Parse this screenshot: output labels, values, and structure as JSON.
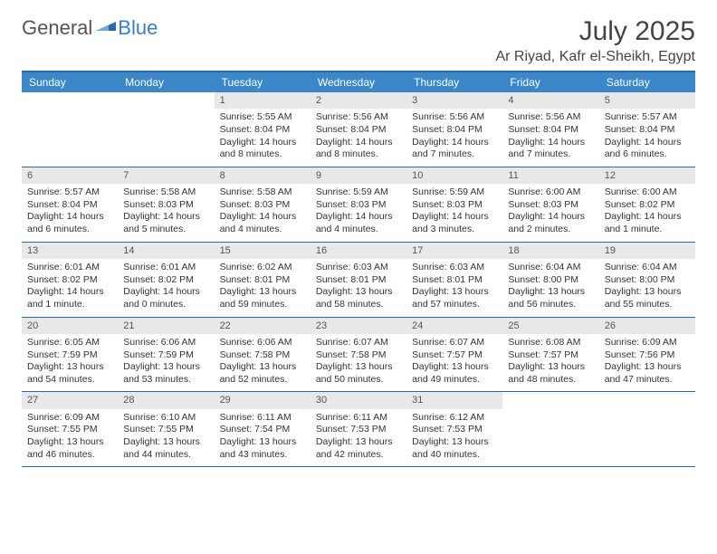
{
  "logo": {
    "part1": "General",
    "part2": "Blue"
  },
  "title": "July 2025",
  "location": "Ar Riyad, Kafr el-Sheikh, Egypt",
  "colors": {
    "header_bg": "#3b87c8",
    "header_border": "#2d6aa3",
    "daynum_bg": "#e8e8e8",
    "logo_blue": "#3b7fc4",
    "text": "#333333"
  },
  "daysOfWeek": [
    "Sunday",
    "Monday",
    "Tuesday",
    "Wednesday",
    "Thursday",
    "Friday",
    "Saturday"
  ],
  "weeks": [
    [
      {
        "n": "",
        "sr": "",
        "ss": "",
        "dl": ""
      },
      {
        "n": "",
        "sr": "",
        "ss": "",
        "dl": ""
      },
      {
        "n": "1",
        "sr": "Sunrise: 5:55 AM",
        "ss": "Sunset: 8:04 PM",
        "dl": "Daylight: 14 hours and 8 minutes."
      },
      {
        "n": "2",
        "sr": "Sunrise: 5:56 AM",
        "ss": "Sunset: 8:04 PM",
        "dl": "Daylight: 14 hours and 8 minutes."
      },
      {
        "n": "3",
        "sr": "Sunrise: 5:56 AM",
        "ss": "Sunset: 8:04 PM",
        "dl": "Daylight: 14 hours and 7 minutes."
      },
      {
        "n": "4",
        "sr": "Sunrise: 5:56 AM",
        "ss": "Sunset: 8:04 PM",
        "dl": "Daylight: 14 hours and 7 minutes."
      },
      {
        "n": "5",
        "sr": "Sunrise: 5:57 AM",
        "ss": "Sunset: 8:04 PM",
        "dl": "Daylight: 14 hours and 6 minutes."
      }
    ],
    [
      {
        "n": "6",
        "sr": "Sunrise: 5:57 AM",
        "ss": "Sunset: 8:04 PM",
        "dl": "Daylight: 14 hours and 6 minutes."
      },
      {
        "n": "7",
        "sr": "Sunrise: 5:58 AM",
        "ss": "Sunset: 8:03 PM",
        "dl": "Daylight: 14 hours and 5 minutes."
      },
      {
        "n": "8",
        "sr": "Sunrise: 5:58 AM",
        "ss": "Sunset: 8:03 PM",
        "dl": "Daylight: 14 hours and 4 minutes."
      },
      {
        "n": "9",
        "sr": "Sunrise: 5:59 AM",
        "ss": "Sunset: 8:03 PM",
        "dl": "Daylight: 14 hours and 4 minutes."
      },
      {
        "n": "10",
        "sr": "Sunrise: 5:59 AM",
        "ss": "Sunset: 8:03 PM",
        "dl": "Daylight: 14 hours and 3 minutes."
      },
      {
        "n": "11",
        "sr": "Sunrise: 6:00 AM",
        "ss": "Sunset: 8:03 PM",
        "dl": "Daylight: 14 hours and 2 minutes."
      },
      {
        "n": "12",
        "sr": "Sunrise: 6:00 AM",
        "ss": "Sunset: 8:02 PM",
        "dl": "Daylight: 14 hours and 1 minute."
      }
    ],
    [
      {
        "n": "13",
        "sr": "Sunrise: 6:01 AM",
        "ss": "Sunset: 8:02 PM",
        "dl": "Daylight: 14 hours and 1 minute."
      },
      {
        "n": "14",
        "sr": "Sunrise: 6:01 AM",
        "ss": "Sunset: 8:02 PM",
        "dl": "Daylight: 14 hours and 0 minutes."
      },
      {
        "n": "15",
        "sr": "Sunrise: 6:02 AM",
        "ss": "Sunset: 8:01 PM",
        "dl": "Daylight: 13 hours and 59 minutes."
      },
      {
        "n": "16",
        "sr": "Sunrise: 6:03 AM",
        "ss": "Sunset: 8:01 PM",
        "dl": "Daylight: 13 hours and 58 minutes."
      },
      {
        "n": "17",
        "sr": "Sunrise: 6:03 AM",
        "ss": "Sunset: 8:01 PM",
        "dl": "Daylight: 13 hours and 57 minutes."
      },
      {
        "n": "18",
        "sr": "Sunrise: 6:04 AM",
        "ss": "Sunset: 8:00 PM",
        "dl": "Daylight: 13 hours and 56 minutes."
      },
      {
        "n": "19",
        "sr": "Sunrise: 6:04 AM",
        "ss": "Sunset: 8:00 PM",
        "dl": "Daylight: 13 hours and 55 minutes."
      }
    ],
    [
      {
        "n": "20",
        "sr": "Sunrise: 6:05 AM",
        "ss": "Sunset: 7:59 PM",
        "dl": "Daylight: 13 hours and 54 minutes."
      },
      {
        "n": "21",
        "sr": "Sunrise: 6:06 AM",
        "ss": "Sunset: 7:59 PM",
        "dl": "Daylight: 13 hours and 53 minutes."
      },
      {
        "n": "22",
        "sr": "Sunrise: 6:06 AM",
        "ss": "Sunset: 7:58 PM",
        "dl": "Daylight: 13 hours and 52 minutes."
      },
      {
        "n": "23",
        "sr": "Sunrise: 6:07 AM",
        "ss": "Sunset: 7:58 PM",
        "dl": "Daylight: 13 hours and 50 minutes."
      },
      {
        "n": "24",
        "sr": "Sunrise: 6:07 AM",
        "ss": "Sunset: 7:57 PM",
        "dl": "Daylight: 13 hours and 49 minutes."
      },
      {
        "n": "25",
        "sr": "Sunrise: 6:08 AM",
        "ss": "Sunset: 7:57 PM",
        "dl": "Daylight: 13 hours and 48 minutes."
      },
      {
        "n": "26",
        "sr": "Sunrise: 6:09 AM",
        "ss": "Sunset: 7:56 PM",
        "dl": "Daylight: 13 hours and 47 minutes."
      }
    ],
    [
      {
        "n": "27",
        "sr": "Sunrise: 6:09 AM",
        "ss": "Sunset: 7:55 PM",
        "dl": "Daylight: 13 hours and 46 minutes."
      },
      {
        "n": "28",
        "sr": "Sunrise: 6:10 AM",
        "ss": "Sunset: 7:55 PM",
        "dl": "Daylight: 13 hours and 44 minutes."
      },
      {
        "n": "29",
        "sr": "Sunrise: 6:11 AM",
        "ss": "Sunset: 7:54 PM",
        "dl": "Daylight: 13 hours and 43 minutes."
      },
      {
        "n": "30",
        "sr": "Sunrise: 6:11 AM",
        "ss": "Sunset: 7:53 PM",
        "dl": "Daylight: 13 hours and 42 minutes."
      },
      {
        "n": "31",
        "sr": "Sunrise: 6:12 AM",
        "ss": "Sunset: 7:53 PM",
        "dl": "Daylight: 13 hours and 40 minutes."
      },
      {
        "n": "",
        "sr": "",
        "ss": "",
        "dl": ""
      },
      {
        "n": "",
        "sr": "",
        "ss": "",
        "dl": ""
      }
    ]
  ]
}
